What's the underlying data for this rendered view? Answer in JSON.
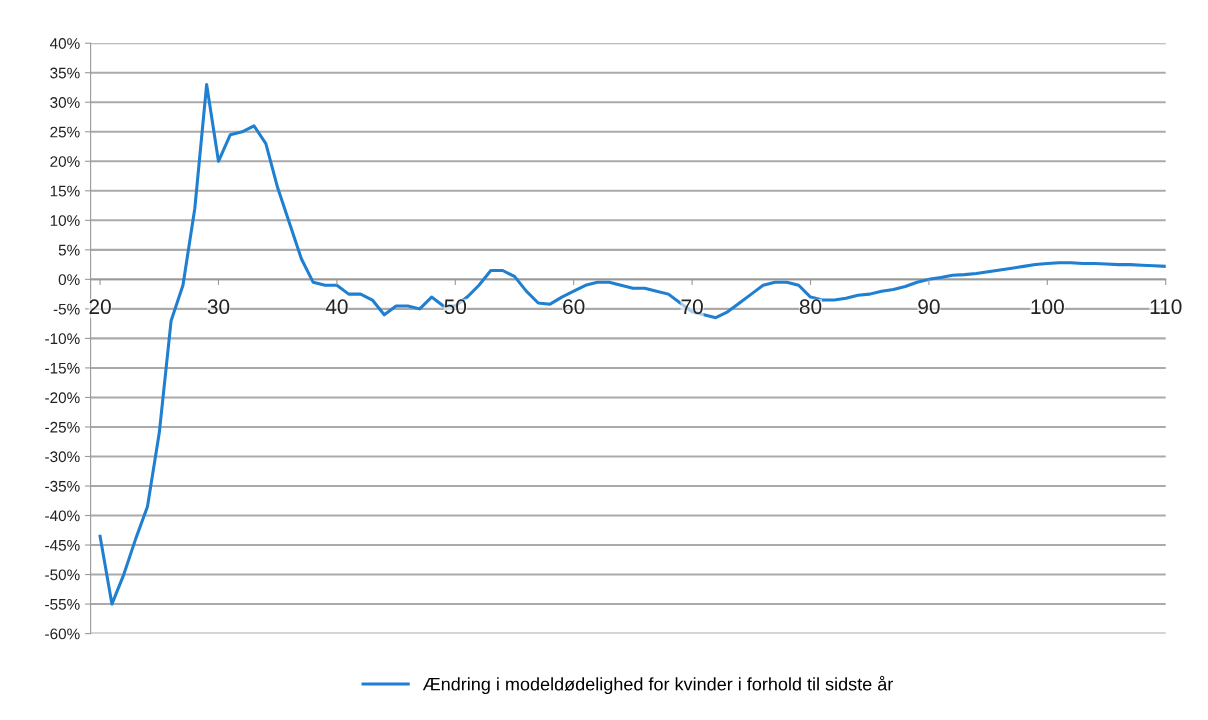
{
  "chart_data": {
    "type": "line",
    "x": [
      20,
      21,
      22,
      23,
      24,
      25,
      26,
      27,
      28,
      29,
      30,
      31,
      32,
      33,
      34,
      35,
      36,
      37,
      38,
      39,
      40,
      41,
      42,
      43,
      44,
      45,
      46,
      47,
      48,
      49,
      50,
      51,
      52,
      53,
      54,
      55,
      56,
      57,
      58,
      59,
      60,
      61,
      62,
      63,
      64,
      65,
      66,
      67,
      68,
      69,
      70,
      71,
      72,
      73,
      74,
      75,
      76,
      77,
      78,
      79,
      80,
      81,
      82,
      83,
      84,
      85,
      86,
      87,
      88,
      89,
      90,
      91,
      92,
      93,
      94,
      95,
      96,
      97,
      98,
      99,
      100,
      101,
      102,
      103,
      104,
      105,
      106,
      107,
      108,
      109,
      110
    ],
    "series": [
      {
        "name": "Ændring i modeldødelighed for kvinder i forhold til sidste år",
        "color": "#1f7fd0",
        "values": [
          -43.5,
          -55,
          -50,
          -44,
          -38.5,
          -26,
          -7,
          -1,
          12,
          33,
          20,
          24.5,
          25,
          26,
          23,
          15.5,
          9.5,
          3.5,
          -0.5,
          -1,
          -1,
          -2.5,
          -2.5,
          -3.5,
          -6,
          -4.5,
          -4.5,
          -5,
          -3,
          -4.5,
          -4.5,
          -3,
          -1,
          1.5,
          1.5,
          0.5,
          -2,
          -4,
          -4.2,
          -3,
          -2,
          -1,
          -0.5,
          -0.5,
          -1,
          -1.5,
          -1.5,
          -2,
          -2.5,
          -4,
          -5.5,
          -6,
          -6.5,
          -5.5,
          -4,
          -2.5,
          -1,
          -0.5,
          -0.5,
          -1,
          -3,
          -3.5,
          -3.5,
          -3.2,
          -2.7,
          -2.5,
          -2,
          -1.7,
          -1.2,
          -0.5,
          0,
          0.3,
          0.7,
          0.8,
          1.0,
          1.3,
          1.6,
          1.9,
          2.2,
          2.5,
          2.7,
          2.8,
          2.8,
          2.7,
          2.7,
          2.6,
          2.5,
          2.5,
          2.4,
          2.3,
          2.2
        ]
      }
    ],
    "xlim": [
      19.2,
      110
    ],
    "xticks": [
      20,
      30,
      40,
      50,
      60,
      70,
      80,
      90,
      100,
      110
    ],
    "ylim": [
      -60,
      40
    ],
    "yticks": [
      {
        "value": -60,
        "label": "-60%"
      },
      {
        "value": -55,
        "label": "-55%"
      },
      {
        "value": -50,
        "label": "-50%"
      },
      {
        "value": -45,
        "label": "-45%"
      },
      {
        "value": -40,
        "label": "-40%"
      },
      {
        "value": -35,
        "label": "-35%"
      },
      {
        "value": -30,
        "label": "-30%"
      },
      {
        "value": -25,
        "label": "-25%"
      },
      {
        "value": -20,
        "label": "-20%"
      },
      {
        "value": -15,
        "label": "-15%"
      },
      {
        "value": -10,
        "label": "-10%"
      },
      {
        "value": -5,
        "label": "-5%"
      },
      {
        "value": 0,
        "label": "0%"
      },
      {
        "value": 5,
        "label": "5%"
      },
      {
        "value": 10,
        "label": "10%"
      },
      {
        "value": 15,
        "label": "15%"
      },
      {
        "value": 20,
        "label": "20%"
      },
      {
        "value": 25,
        "label": "25%"
      },
      {
        "value": 30,
        "label": "30%"
      },
      {
        "value": 35,
        "label": "35%"
      },
      {
        "value": 40,
        "label": "40%"
      }
    ],
    "grid": "y",
    "legend": "bottom",
    "marker": "none",
    "line_style": "solid"
  }
}
